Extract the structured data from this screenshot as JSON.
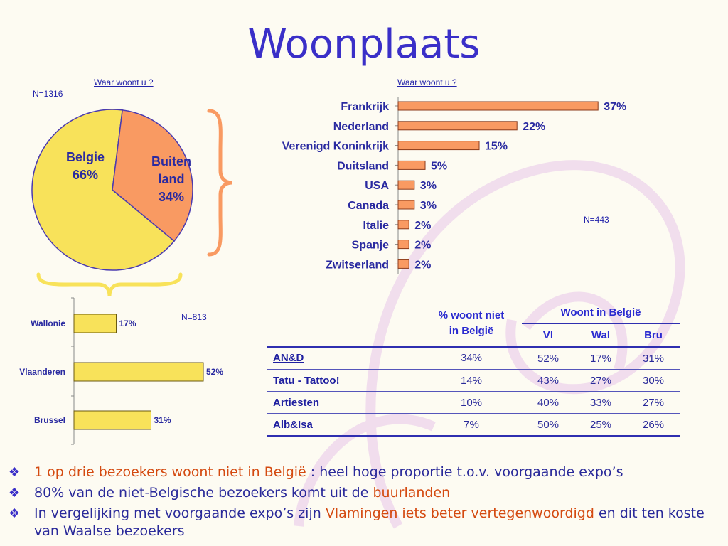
{
  "title": "Woonplaats",
  "pie": {
    "question": "Waar woont u ?",
    "n": "N=1316",
    "slices": [
      {
        "label_line1": "Belgie",
        "label_line2": "66%",
        "value": 66,
        "color": "#f8e25a"
      },
      {
        "label_line1": "Buiten",
        "label_line2": "land",
        "label_line3": "34%",
        "value": 34,
        "color": "#f99a62"
      }
    ]
  },
  "chart_data": [
    {
      "type": "pie",
      "title": "Waar woont u ?",
      "categories": [
        "Belgie",
        "Buitenland"
      ],
      "values": [
        66,
        34
      ]
    },
    {
      "type": "bar",
      "title": "Waar woont u ?",
      "orientation": "horizontal",
      "n": "N=443",
      "categories": [
        "Frankrijk",
        "Nederland",
        "Verenigd Koninkrijk",
        "Duitsland",
        "USA",
        "Canada",
        "Italie",
        "Spanje",
        "Zwitserland"
      ],
      "values": [
        37,
        22,
        15,
        5,
        3,
        3,
        2,
        2,
        2
      ],
      "value_labels": [
        "37%",
        "22%",
        "15%",
        "5%",
        "3%",
        "3%",
        "2%",
        "2%",
        "2%"
      ],
      "xlim": [
        0,
        40
      ],
      "color": "#f99a62"
    },
    {
      "type": "bar",
      "orientation": "horizontal",
      "n": "N=813",
      "categories": [
        "Wallonie",
        "Vlaanderen",
        "Brussel"
      ],
      "values": [
        17,
        52,
        31
      ],
      "value_labels": [
        "17%",
        "52%",
        "31%"
      ],
      "xlim": [
        0,
        60
      ],
      "color": "#f8e25a"
    }
  ],
  "table": {
    "col_pct": "% woont niet in België",
    "col_pct_line1": "% woont niet",
    "col_pct_line2": "in België",
    "group_header": "Woont in België",
    "sub_headers": [
      "Vl",
      "Wal",
      "Bru"
    ],
    "rows": [
      {
        "name": "AN&D",
        "pct": "34%",
        "vl": "52%",
        "wal": "17%",
        "bru": "31%"
      },
      {
        "name": "Tatu - Tattoo!",
        "pct": "14%",
        "vl": "43%",
        "wal": "27%",
        "bru": "30%"
      },
      {
        "name": "Artiesten",
        "pct": "10%",
        "vl": "40%",
        "wal": "33%",
        "bru": "27%"
      },
      {
        "name": "Alb&Isa",
        "pct": "7%",
        "vl": "50%",
        "wal": "25%",
        "bru": "26%"
      }
    ]
  },
  "bullets": [
    {
      "parts": [
        {
          "text": "1 op drie bezoekers woont niet in België",
          "hl": true
        },
        {
          "text": " : heel hoge proportie t.o.v. voorgaande expo’s",
          "hl": false
        }
      ]
    },
    {
      "parts": [
        {
          "text": "80% van de niet-Belgische bezoekers komt uit de ",
          "hl": false
        },
        {
          "text": "buurlanden",
          "hl": true
        }
      ]
    },
    {
      "parts": [
        {
          "text": "In vergelijking met voorgaande expo’s zijn ",
          "hl": false
        },
        {
          "text": "Vlamingen iets beter vertegenwoordigd",
          "hl": true
        },
        {
          "text": " en dit ten koste van Waalse bezoekers",
          "hl": false
        }
      ]
    }
  ],
  "colors": {
    "title": "#3a2fc8",
    "highlight": "#d44a10",
    "brace_orange": "#f99a62",
    "brace_yellow": "#f8e25a"
  }
}
